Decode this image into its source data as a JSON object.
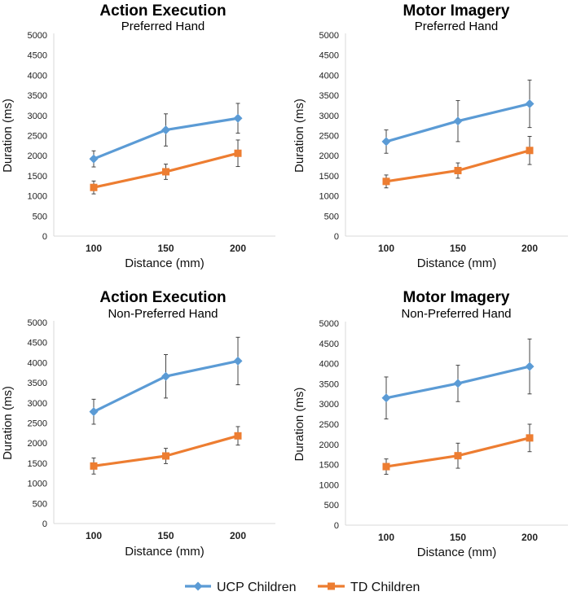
{
  "colors": {
    "ucp": "#5b9bd5",
    "td": "#ed7d31",
    "axis": "#d9d9d9",
    "error": "#444444"
  },
  "legend": [
    {
      "name": "UCP Children",
      "color": "#5b9bd5",
      "marker": "diamond"
    },
    {
      "name": "TD Children",
      "color": "#ed7d31",
      "marker": "square"
    }
  ],
  "chart_data": [
    {
      "type": "line",
      "title": "Action Execution",
      "subtitle": "Preferred Hand",
      "xlabel": "Distance (mm)",
      "ylabel": "Duration (ms)",
      "categories": [
        "100",
        "150",
        "200"
      ],
      "ylim": [
        0,
        5000
      ],
      "yticks": [
        "0",
        "500",
        "1000",
        "1500",
        "2000",
        "2500",
        "3000",
        "3500",
        "4000",
        "4500",
        "5000"
      ],
      "series": [
        {
          "name": "UCP Children",
          "values": [
            1920,
            2640,
            2930
          ],
          "error_bars": [
            200,
            400,
            370
          ]
        },
        {
          "name": "TD Children",
          "values": [
            1210,
            1600,
            2060
          ],
          "error_bars": [
            160,
            190,
            330
          ]
        }
      ]
    },
    {
      "type": "line",
      "title": "Motor Imagery",
      "subtitle": "Preferred Hand",
      "xlabel": "Distance (mm)",
      "ylabel": "Duration (ms)",
      "categories": [
        "100",
        "150",
        "200"
      ],
      "ylim": [
        0,
        5000
      ],
      "yticks": [
        "0",
        "500",
        "1000",
        "1500",
        "2000",
        "2500",
        "3000",
        "3500",
        "4000",
        "4500",
        "5000"
      ],
      "series": [
        {
          "name": "UCP Children",
          "values": [
            2350,
            2860,
            3290
          ],
          "error_bars": [
            290,
            510,
            590
          ]
        },
        {
          "name": "TD Children",
          "values": [
            1360,
            1630,
            2130
          ],
          "error_bars": [
            160,
            190,
            350
          ]
        }
      ]
    },
    {
      "type": "line",
      "title": "Action Execution",
      "subtitle": "Non-Preferred Hand",
      "xlabel": "Distance (mm)",
      "ylabel": "Duration (ms)",
      "categories": [
        "100",
        "150",
        "200"
      ],
      "ylim": [
        0,
        5000
      ],
      "yticks": [
        "0",
        "500",
        "1000",
        "1500",
        "2000",
        "2500",
        "3000",
        "3500",
        "4000",
        "4500",
        "5000"
      ],
      "series": [
        {
          "name": "UCP Children",
          "values": [
            2780,
            3660,
            4040
          ],
          "error_bars": [
            310,
            540,
            590
          ]
        },
        {
          "name": "TD Children",
          "values": [
            1430,
            1680,
            2180
          ],
          "error_bars": [
            200,
            190,
            230
          ]
        }
      ]
    },
    {
      "type": "line",
      "title": "Motor Imagery",
      "subtitle": "Non-Preferred Hand",
      "xlabel": "Distance (mm)",
      "ylabel": "Duration (ms)",
      "categories": [
        "100",
        "150",
        "200"
      ],
      "ylim": [
        0,
        5000
      ],
      "yticks": [
        "0",
        "500",
        "1000",
        "1500",
        "2000",
        "2500",
        "3000",
        "3500",
        "4000",
        "4500",
        "5000"
      ],
      "series": [
        {
          "name": "UCP Children",
          "values": [
            3150,
            3510,
            3930
          ],
          "error_bars": [
            520,
            450,
            680
          ]
        },
        {
          "name": "TD Children",
          "values": [
            1450,
            1720,
            2160
          ],
          "error_bars": [
            190,
            310,
            340
          ]
        }
      ]
    }
  ]
}
